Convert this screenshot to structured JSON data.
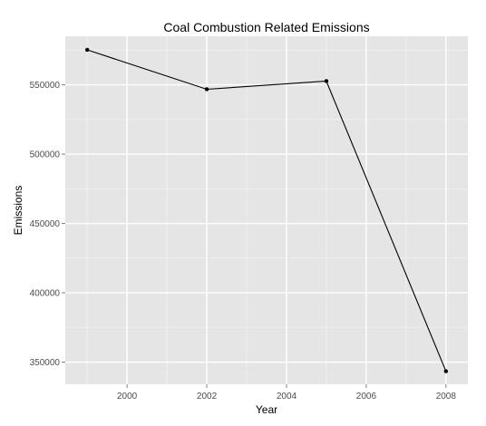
{
  "chart_data": {
    "type": "line",
    "title": "Coal Combustion Related Emissions",
    "xlabel": "Year",
    "ylabel": "Emissions",
    "x": [
      1999,
      2002,
      2005,
      2008
    ],
    "series": [
      {
        "values": [
          575207,
          546789,
          552675,
          343432
        ]
      }
    ],
    "xlim": [
      1998.45,
      2008.55
    ],
    "ylim": [
      334000,
      585000
    ],
    "x_ticks": [
      2000,
      2002,
      2004,
      2006,
      2008
    ],
    "x_tick_labels": [
      "2000",
      "2002",
      "2004",
      "2006",
      "2008"
    ],
    "y_ticks": [
      350000,
      400000,
      450000,
      500000,
      550000
    ],
    "y_tick_labels": [
      "350000",
      "400000",
      "450000",
      "500000",
      "550000"
    ],
    "grid": true,
    "legend": "none",
    "colors": {
      "panel_background": "#e5e5e5",
      "grid_major": "#ffffff",
      "grid_minor": "#f2f2f2",
      "line": "#000000",
      "point": "#000000",
      "tick_text": "#4d4d4d",
      "tick_mark": "#7f7f7f"
    }
  }
}
